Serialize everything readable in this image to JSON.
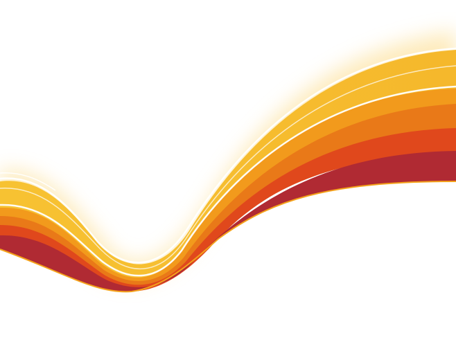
{
  "artwork": {
    "description_colors": {
      "background": "#ffffff",
      "glow": "#fde7b0",
      "band_yellow": "#f6bd2e",
      "band_gold": "#f29a1c",
      "band_orange": "#e97918",
      "band_red_orange": "#e0481c",
      "band_deep_red": "#b02a33",
      "highlight_line": "#ffffff",
      "edge_line": "#f4a21b"
    }
  }
}
